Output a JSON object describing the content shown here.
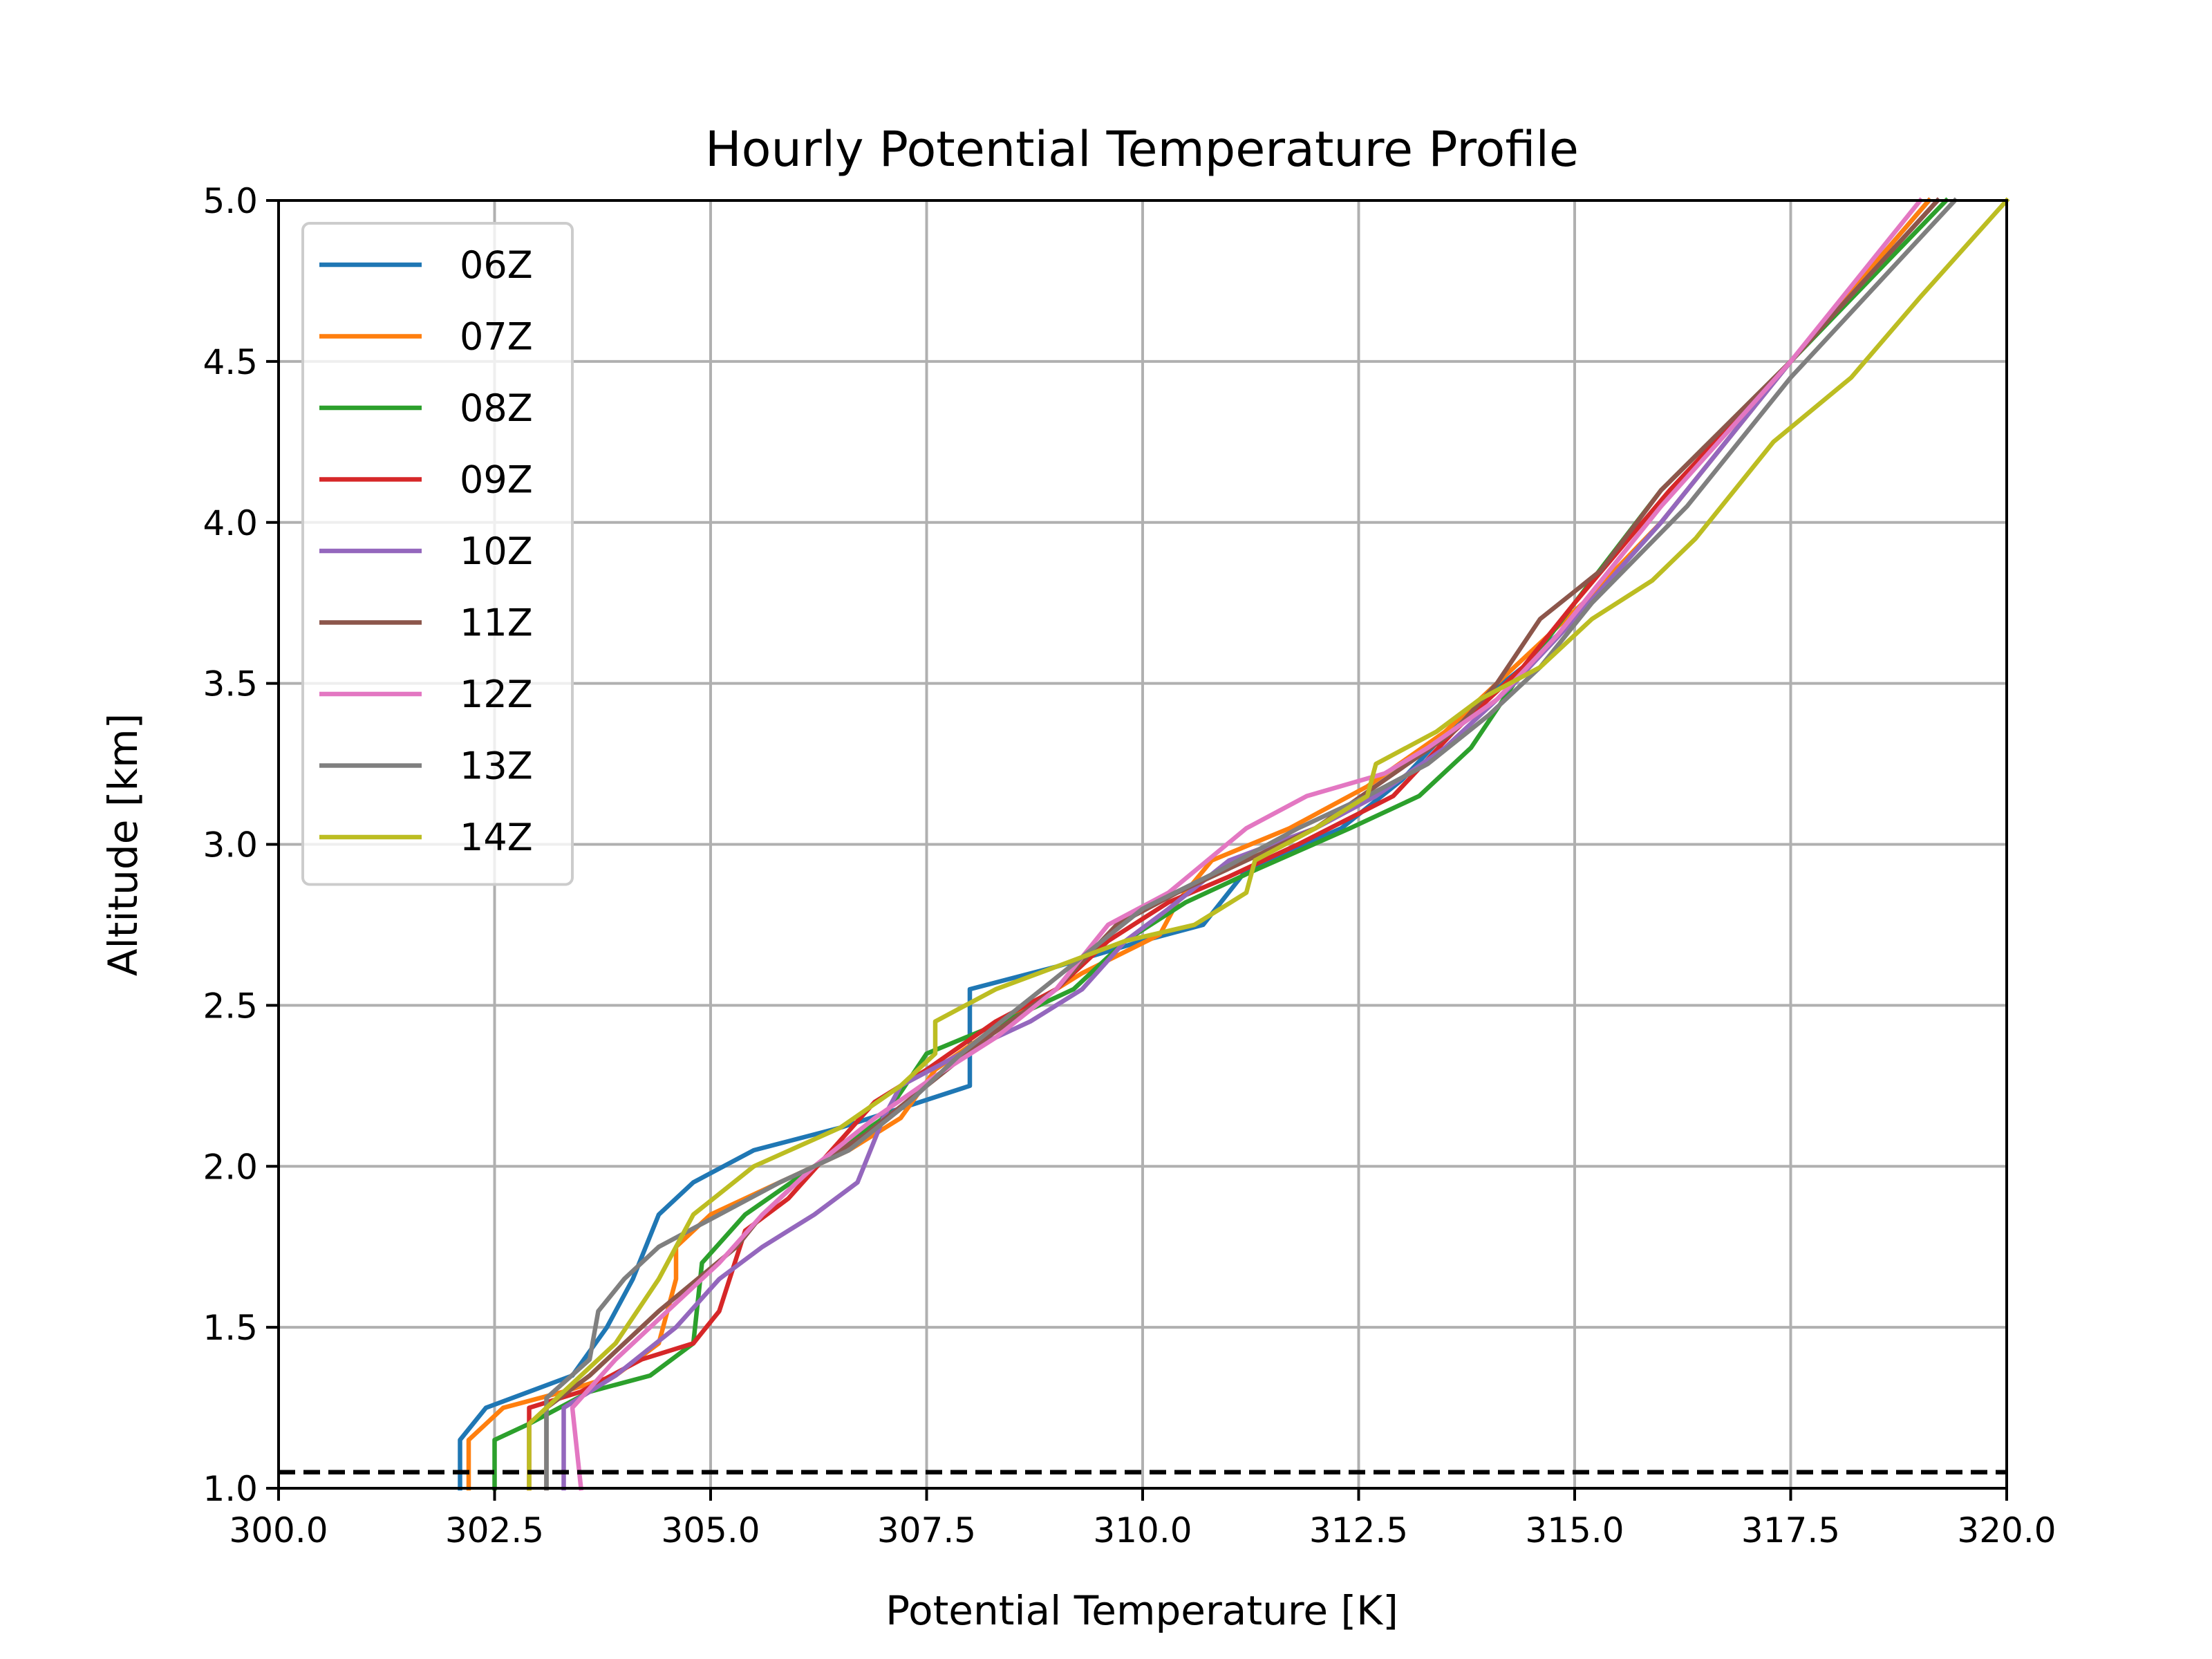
{
  "chart_data": {
    "type": "line",
    "title": "Hourly Potential Temperature Profile",
    "xlabel": "Potential Temperature [K]",
    "ylabel": "Altitude [km]",
    "xlim": [
      300.0,
      320.0
    ],
    "ylim": [
      1.0,
      5.0
    ],
    "xticks": [
      "300.0",
      "302.5",
      "305.0",
      "307.5",
      "310.0",
      "312.5",
      "315.0",
      "317.5",
      "320.0"
    ],
    "yticks": [
      "1.0",
      "1.5",
      "2.0",
      "2.5",
      "3.0",
      "3.5",
      "4.0",
      "4.5",
      "5.0"
    ],
    "grid": true,
    "legend_position": "upper-left",
    "reference_line": {
      "y": 1.05,
      "style": "dashed",
      "color": "#000000"
    },
    "series": [
      {
        "name": "06Z",
        "color": "#1f77b4",
        "points": [
          [
            302.1,
            1.0
          ],
          [
            302.1,
            1.15
          ],
          [
            302.4,
            1.25
          ],
          [
            303.4,
            1.35
          ],
          [
            303.8,
            1.5
          ],
          [
            304.1,
            1.65
          ],
          [
            304.4,
            1.85
          ],
          [
            304.8,
            1.95
          ],
          [
            305.5,
            2.05
          ],
          [
            306.5,
            2.12
          ],
          [
            307.2,
            2.18
          ],
          [
            308.0,
            2.25
          ],
          [
            308.0,
            2.55
          ],
          [
            309.0,
            2.62
          ],
          [
            310.0,
            2.7
          ],
          [
            310.7,
            2.75
          ],
          [
            311.2,
            2.92
          ],
          [
            312.3,
            3.05
          ],
          [
            313.0,
            3.2
          ],
          [
            313.7,
            3.4
          ],
          [
            314.4,
            3.55
          ],
          [
            315.0,
            3.7
          ],
          [
            316.0,
            4.0
          ],
          [
            317.5,
            4.5
          ],
          [
            319.1,
            5.0
          ]
        ]
      },
      {
        "name": "07Z",
        "color": "#ff7f0e",
        "points": [
          [
            302.2,
            1.0
          ],
          [
            302.2,
            1.15
          ],
          [
            302.6,
            1.25
          ],
          [
            303.3,
            1.3
          ],
          [
            303.9,
            1.35
          ],
          [
            304.4,
            1.45
          ],
          [
            304.6,
            1.65
          ],
          [
            304.6,
            1.75
          ],
          [
            305.0,
            1.85
          ],
          [
            305.8,
            1.95
          ],
          [
            306.6,
            2.05
          ],
          [
            307.2,
            2.15
          ],
          [
            307.6,
            2.3
          ],
          [
            308.4,
            2.45
          ],
          [
            309.3,
            2.6
          ],
          [
            310.2,
            2.72
          ],
          [
            310.4,
            2.82
          ],
          [
            310.8,
            2.95
          ],
          [
            311.7,
            3.05
          ],
          [
            312.6,
            3.18
          ],
          [
            313.5,
            3.35
          ],
          [
            314.3,
            3.55
          ],
          [
            315.1,
            3.75
          ],
          [
            316.0,
            4.0
          ],
          [
            317.5,
            4.5
          ],
          [
            319.1,
            5.0
          ]
        ]
      },
      {
        "name": "08Z",
        "color": "#2ca02c",
        "points": [
          [
            302.5,
            1.0
          ],
          [
            302.5,
            1.15
          ],
          [
            302.9,
            1.2
          ],
          [
            303.6,
            1.3
          ],
          [
            304.3,
            1.35
          ],
          [
            304.8,
            1.45
          ],
          [
            304.9,
            1.7
          ],
          [
            305.4,
            1.85
          ],
          [
            306.2,
            2.0
          ],
          [
            307.0,
            2.15
          ],
          [
            307.5,
            2.35
          ],
          [
            308.4,
            2.45
          ],
          [
            309.2,
            2.55
          ],
          [
            309.8,
            2.7
          ],
          [
            310.5,
            2.82
          ],
          [
            311.3,
            2.92
          ],
          [
            312.4,
            3.05
          ],
          [
            313.2,
            3.15
          ],
          [
            313.8,
            3.3
          ],
          [
            314.3,
            3.5
          ],
          [
            315.0,
            3.75
          ],
          [
            316.0,
            4.1
          ],
          [
            317.5,
            4.5
          ],
          [
            319.3,
            5.0
          ]
        ]
      },
      {
        "name": "09Z",
        "color": "#d62728",
        "points": [
          [
            302.9,
            1.0
          ],
          [
            302.9,
            1.25
          ],
          [
            303.5,
            1.3
          ],
          [
            304.2,
            1.4
          ],
          [
            304.8,
            1.45
          ],
          [
            305.1,
            1.55
          ],
          [
            305.4,
            1.8
          ],
          [
            305.9,
            1.9
          ],
          [
            306.4,
            2.05
          ],
          [
            306.9,
            2.2
          ],
          [
            307.5,
            2.3
          ],
          [
            308.3,
            2.45
          ],
          [
            309.0,
            2.55
          ],
          [
            309.6,
            2.7
          ],
          [
            310.3,
            2.82
          ],
          [
            311.0,
            2.9
          ],
          [
            311.8,
            3.0
          ],
          [
            312.9,
            3.15
          ],
          [
            313.6,
            3.35
          ],
          [
            314.4,
            3.55
          ],
          [
            315.0,
            3.75
          ],
          [
            316.1,
            4.1
          ],
          [
            317.5,
            4.5
          ],
          [
            319.2,
            5.0
          ]
        ]
      },
      {
        "name": "10Z",
        "color": "#9467bd",
        "points": [
          [
            303.3,
            1.0
          ],
          [
            303.3,
            1.25
          ],
          [
            303.9,
            1.35
          ],
          [
            304.6,
            1.5
          ],
          [
            305.1,
            1.65
          ],
          [
            305.6,
            1.75
          ],
          [
            306.2,
            1.85
          ],
          [
            306.7,
            1.95
          ],
          [
            307.0,
            2.15
          ],
          [
            307.2,
            2.25
          ],
          [
            307.9,
            2.35
          ],
          [
            308.7,
            2.45
          ],
          [
            309.3,
            2.55
          ],
          [
            309.8,
            2.7
          ],
          [
            310.3,
            2.8
          ],
          [
            311.0,
            2.95
          ],
          [
            312.0,
            3.05
          ],
          [
            312.7,
            3.15
          ],
          [
            313.5,
            3.3
          ],
          [
            314.3,
            3.5
          ],
          [
            315.0,
            3.7
          ],
          [
            316.0,
            4.0
          ],
          [
            317.5,
            4.5
          ],
          [
            319.2,
            5.0
          ]
        ]
      },
      {
        "name": "11Z",
        "color": "#8c564b",
        "points": [
          [
            303.1,
            1.0
          ],
          [
            303.1,
            1.25
          ],
          [
            303.6,
            1.35
          ],
          [
            304.4,
            1.55
          ],
          [
            305.3,
            1.75
          ],
          [
            305.6,
            1.85
          ],
          [
            306.2,
            2.0
          ],
          [
            306.8,
            2.1
          ],
          [
            307.5,
            2.25
          ],
          [
            308.2,
            2.4
          ],
          [
            309.0,
            2.55
          ],
          [
            309.7,
            2.75
          ],
          [
            310.4,
            2.85
          ],
          [
            311.2,
            2.95
          ],
          [
            312.0,
            3.05
          ],
          [
            312.8,
            3.2
          ],
          [
            313.6,
            3.35
          ],
          [
            314.1,
            3.5
          ],
          [
            314.6,
            3.7
          ],
          [
            315.3,
            3.85
          ],
          [
            316.0,
            4.1
          ],
          [
            317.5,
            4.5
          ],
          [
            319.2,
            5.0
          ]
        ]
      },
      {
        "name": "12Z",
        "color": "#e377c2",
        "points": [
          [
            303.5,
            1.0
          ],
          [
            303.4,
            1.25
          ],
          [
            303.9,
            1.4
          ],
          [
            304.5,
            1.55
          ],
          [
            305.1,
            1.7
          ],
          [
            305.6,
            1.85
          ],
          [
            306.2,
            2.0
          ],
          [
            306.9,
            2.15
          ],
          [
            307.6,
            2.28
          ],
          [
            308.3,
            2.4
          ],
          [
            309.0,
            2.55
          ],
          [
            309.6,
            2.75
          ],
          [
            310.3,
            2.85
          ],
          [
            311.2,
            3.05
          ],
          [
            311.9,
            3.15
          ],
          [
            312.8,
            3.22
          ],
          [
            313.3,
            3.3
          ],
          [
            314.1,
            3.45
          ],
          [
            314.8,
            3.65
          ],
          [
            315.4,
            3.85
          ],
          [
            316.0,
            4.05
          ],
          [
            317.5,
            4.5
          ],
          [
            319.0,
            5.0
          ]
        ]
      },
      {
        "name": "13Z",
        "color": "#7f7f7f",
        "points": [
          [
            303.1,
            1.0
          ],
          [
            303.1,
            1.28
          ],
          [
            303.6,
            1.4
          ],
          [
            303.7,
            1.55
          ],
          [
            304.0,
            1.65
          ],
          [
            304.4,
            1.75
          ],
          [
            305.1,
            1.85
          ],
          [
            305.8,
            1.95
          ],
          [
            306.6,
            2.05
          ],
          [
            307.3,
            2.2
          ],
          [
            307.9,
            2.35
          ],
          [
            308.6,
            2.5
          ],
          [
            309.3,
            2.65
          ],
          [
            310.0,
            2.8
          ],
          [
            310.9,
            2.92
          ],
          [
            311.8,
            3.05
          ],
          [
            312.6,
            3.15
          ],
          [
            313.3,
            3.25
          ],
          [
            314.0,
            3.4
          ],
          [
            314.6,
            3.55
          ],
          [
            315.2,
            3.75
          ],
          [
            316.3,
            4.05
          ],
          [
            317.5,
            4.45
          ],
          [
            319.4,
            5.0
          ]
        ]
      },
      {
        "name": "14Z",
        "color": "#bcbd22",
        "points": [
          [
            302.9,
            1.0
          ],
          [
            302.9,
            1.2
          ],
          [
            303.3,
            1.3
          ],
          [
            303.9,
            1.45
          ],
          [
            304.4,
            1.65
          ],
          [
            304.8,
            1.85
          ],
          [
            305.5,
            2.0
          ],
          [
            306.5,
            2.12
          ],
          [
            307.2,
            2.25
          ],
          [
            307.6,
            2.35
          ],
          [
            307.6,
            2.45
          ],
          [
            308.3,
            2.55
          ],
          [
            309.0,
            2.62
          ],
          [
            309.8,
            2.7
          ],
          [
            310.6,
            2.75
          ],
          [
            311.2,
            2.85
          ],
          [
            311.3,
            2.95
          ],
          [
            312.0,
            3.05
          ],
          [
            312.6,
            3.15
          ],
          [
            312.7,
            3.25
          ],
          [
            313.4,
            3.35
          ],
          [
            313.9,
            3.45
          ],
          [
            314.6,
            3.55
          ],
          [
            315.2,
            3.7
          ],
          [
            315.9,
            3.82
          ],
          [
            316.4,
            3.95
          ],
          [
            317.3,
            4.25
          ],
          [
            318.2,
            4.45
          ],
          [
            319.0,
            4.7
          ],
          [
            320.0,
            5.0
          ]
        ]
      }
    ]
  }
}
